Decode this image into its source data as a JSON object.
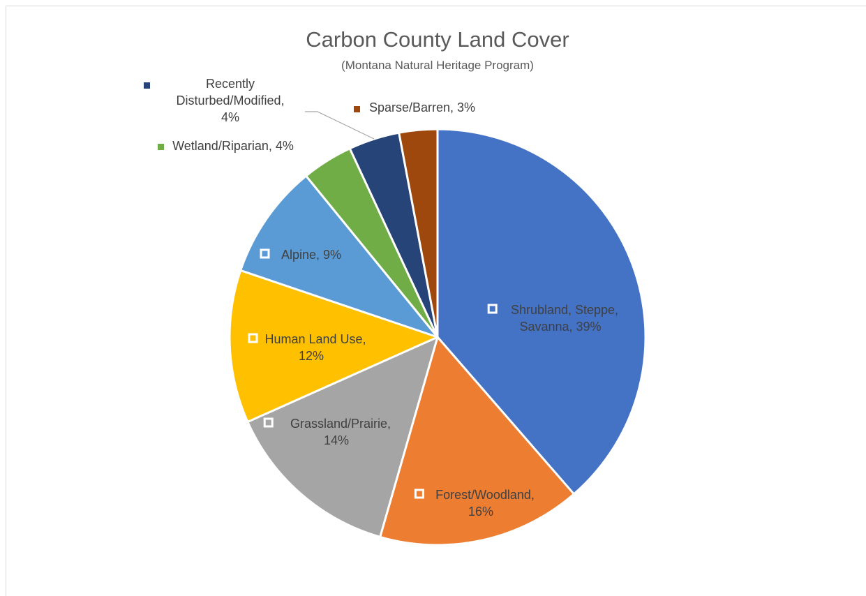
{
  "chart_data": {
    "type": "pie",
    "title": "Carbon County Land Cover",
    "subtitle": "(Montana Natural Heritage Program)",
    "slices": [
      {
        "name": "Shrubland, Steppe, Savanna",
        "value": 39,
        "color": "#4472C4",
        "label_lines": [
          "Shrubland, Steppe,",
          "Savanna, 39%"
        ],
        "label_style": "inside"
      },
      {
        "name": "Forest/Woodland",
        "value": 16,
        "color": "#ED7D31",
        "label_lines": [
          "Forest/Woodland,",
          "16%"
        ],
        "label_style": "inside"
      },
      {
        "name": "Grassland/Prairie",
        "value": 14,
        "color": "#A5A5A5",
        "label_lines": [
          "Grassland/Prairie,",
          "14%"
        ],
        "label_style": "inside"
      },
      {
        "name": "Human Land Use",
        "value": 12,
        "color": "#FFC000",
        "label_lines": [
          "Human Land Use,",
          "12%"
        ],
        "label_style": "inside"
      },
      {
        "name": "Alpine",
        "value": 9,
        "color": "#5B9BD5",
        "label_lines": [
          "Alpine, 9%"
        ],
        "label_style": "inside"
      },
      {
        "name": "Wetland/Riparian",
        "value": 4,
        "color": "#70AD47",
        "label_lines": [
          "Wetland/Riparian, 4%"
        ],
        "label_style": "outside"
      },
      {
        "name": "Recently Disturbed/Modified",
        "value": 4,
        "color": "#264478",
        "label_lines": [
          "Recently",
          "Disturbed/Modified,",
          "4%"
        ],
        "label_style": "outside"
      },
      {
        "name": "Sparse/Barren",
        "value": 3,
        "color": "#9E480E",
        "label_lines": [
          "Sparse/Barren, 3%"
        ],
        "label_style": "outside"
      }
    ],
    "legend": "none",
    "data_labels": "category name and percentage"
  }
}
